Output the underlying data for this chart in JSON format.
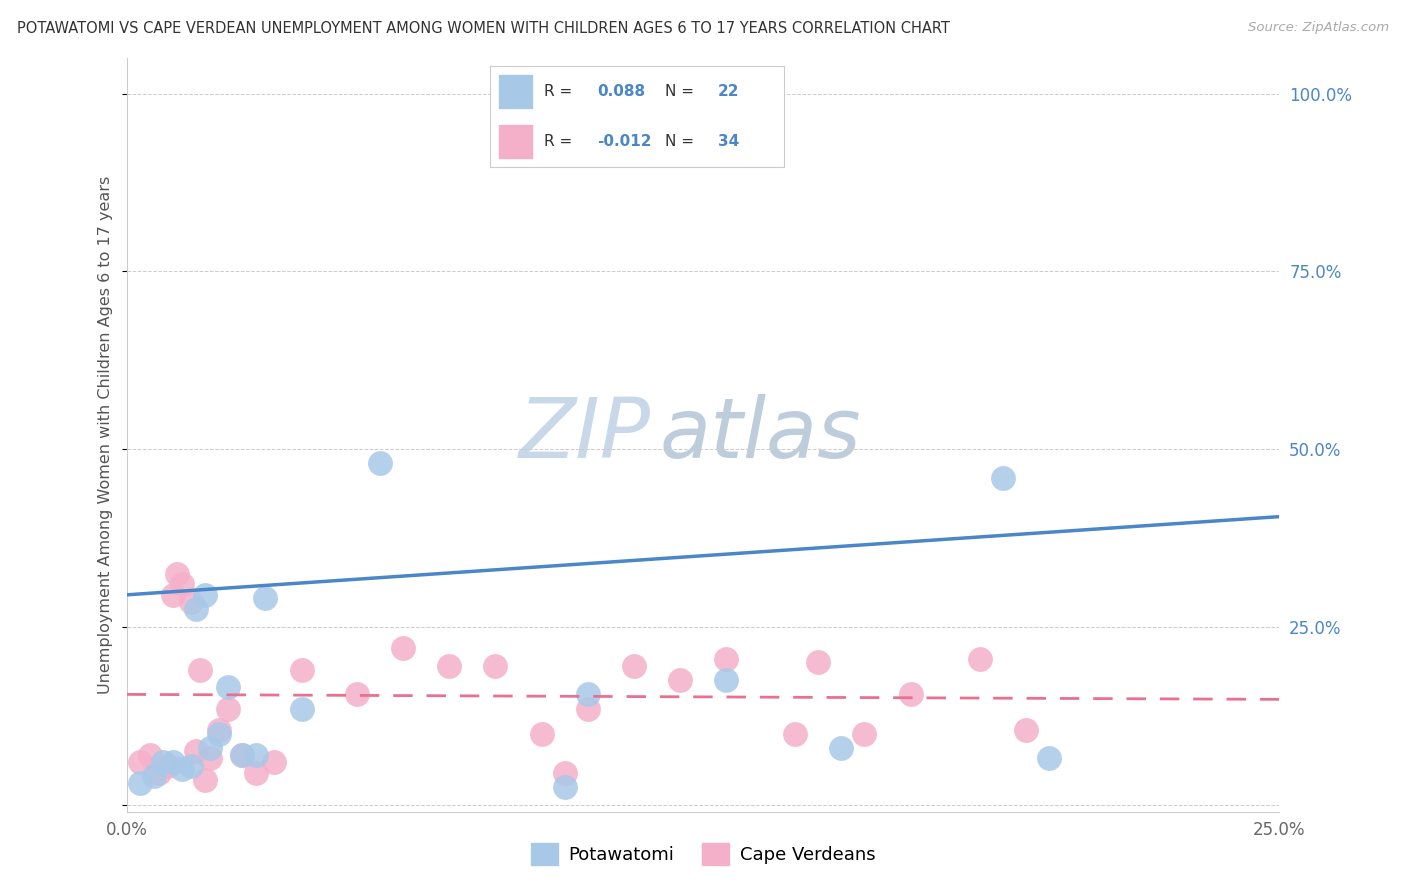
{
  "title": "POTAWATOMI VS CAPE VERDEAN UNEMPLOYMENT AMONG WOMEN WITH CHILDREN AGES 6 TO 17 YEARS CORRELATION CHART",
  "source": "Source: ZipAtlas.com",
  "ylabel": "Unemployment Among Women with Children Ages 6 to 17 years",
  "xlim": [
    0.0,
    0.25
  ],
  "ylim": [
    -0.01,
    1.05
  ],
  "ytick_positions": [
    0.0,
    0.25,
    0.5,
    0.75,
    1.0
  ],
  "yticklabels_right": [
    "",
    "25.0%",
    "50.0%",
    "75.0%",
    "100.0%"
  ],
  "xtick_positions": [
    0.0,
    0.25
  ],
  "xticklabels": [
    "0.0%",
    "25.0%"
  ],
  "potawatomi_R": 0.088,
  "potawatomi_N": 22,
  "capeverdean_R": -0.012,
  "capeverdean_N": 34,
  "potawatomi_color": "#a8c8e8",
  "capeverdean_color": "#f4b0c8",
  "regression_blue": "#4a86c8",
  "regression_pink": "#e87090",
  "blue_line_y0": 0.295,
  "blue_line_y1": 0.405,
  "pink_line_y0": 0.155,
  "pink_line_y1": 0.148,
  "potawatomi_x": [
    0.003,
    0.006,
    0.008,
    0.01,
    0.012,
    0.014,
    0.015,
    0.017,
    0.018,
    0.02,
    0.022,
    0.025,
    0.028,
    0.03,
    0.038,
    0.055,
    0.095,
    0.1,
    0.13,
    0.155,
    0.19,
    0.2
  ],
  "potawatomi_y": [
    0.03,
    0.04,
    0.06,
    0.06,
    0.05,
    0.055,
    0.275,
    0.295,
    0.08,
    0.1,
    0.165,
    0.07,
    0.07,
    0.29,
    0.135,
    0.48,
    0.025,
    0.155,
    0.175,
    0.08,
    0.46,
    0.065
  ],
  "capeverdean_x": [
    0.003,
    0.005,
    0.007,
    0.009,
    0.01,
    0.011,
    0.012,
    0.014,
    0.015,
    0.016,
    0.017,
    0.018,
    0.02,
    0.022,
    0.025,
    0.028,
    0.032,
    0.038,
    0.05,
    0.06,
    0.07,
    0.08,
    0.09,
    0.095,
    0.1,
    0.11,
    0.12,
    0.13,
    0.145,
    0.15,
    0.16,
    0.17,
    0.185,
    0.195
  ],
  "capeverdean_y": [
    0.06,
    0.07,
    0.045,
    0.055,
    0.295,
    0.325,
    0.31,
    0.285,
    0.075,
    0.19,
    0.035,
    0.065,
    0.105,
    0.135,
    0.07,
    0.045,
    0.06,
    0.19,
    0.155,
    0.22,
    0.195,
    0.195,
    0.1,
    0.045,
    0.135,
    0.195,
    0.175,
    0.205,
    0.1,
    0.2,
    0.1,
    0.155,
    0.205,
    0.105
  ],
  "background_color": "#ffffff",
  "grid_color": "#cccccc",
  "watermark_zip_color": "#c8d8e8",
  "watermark_atlas_color": "#7090b0"
}
